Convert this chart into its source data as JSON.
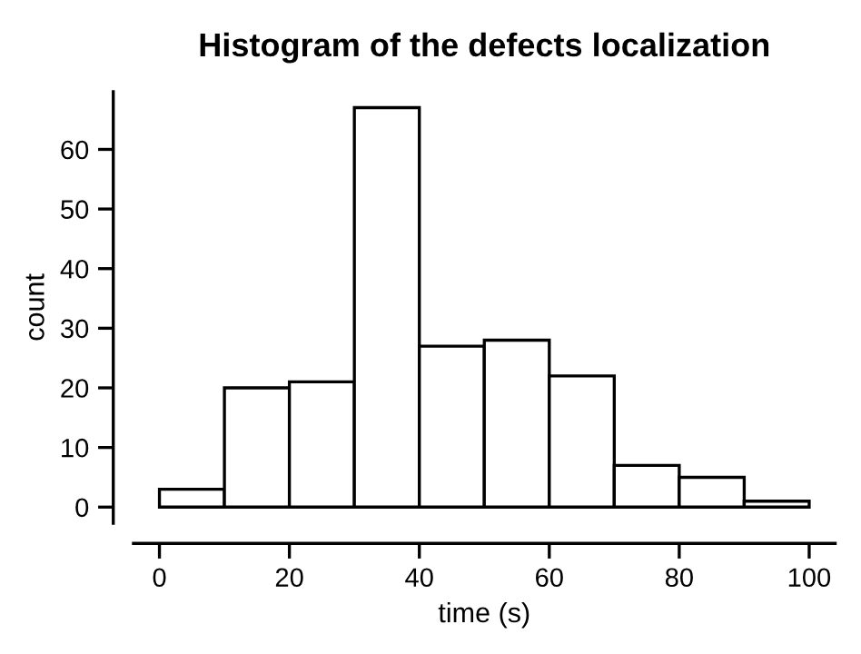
{
  "chart_data": {
    "type": "histogram",
    "title": "Histogram of the defects localization",
    "xlabel": "time (s)",
    "ylabel": "count",
    "bins": [
      0,
      10,
      20,
      30,
      40,
      50,
      60,
      70,
      80,
      90,
      100
    ],
    "values": [
      3,
      20,
      21,
      67,
      27,
      28,
      22,
      7,
      5,
      1
    ],
    "color": "#ffffff",
    "xlim": [
      -4,
      104
    ],
    "ylim": [
      -2.7,
      69.7
    ],
    "xticks": [
      0,
      20,
      40,
      60,
      80,
      100
    ],
    "yticks": [
      0,
      10,
      20,
      30,
      40,
      50,
      60
    ],
    "grid": false
  }
}
